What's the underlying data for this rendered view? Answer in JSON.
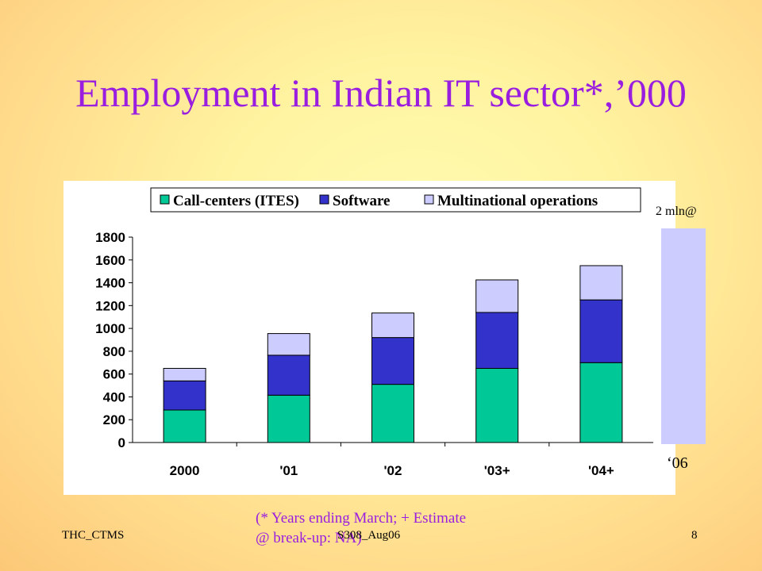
{
  "slide": {
    "title": "Employment in Indian IT sector*,’000",
    "extension_label_top": "2 mln@",
    "extension_label_bottom": "‘06",
    "extension_value_mln": 2,
    "footnote_line1": "(* Years ending March; + Estimate",
    "footnote_line2": "@ break-up: NA)",
    "footer_left": "THC_CTMS",
    "footer_center": "S308_Aug06",
    "footer_right": "8"
  },
  "chart_data": {
    "type": "bar",
    "stacked": true,
    "categories": [
      "2000",
      "'01",
      "'02",
      "'03+",
      "'04+"
    ],
    "series": [
      {
        "name": "Call-centers (ITES)",
        "color": "#00c896",
        "values": [
          285,
          415,
          510,
          650,
          700
        ]
      },
      {
        "name": "Software",
        "color": "#3333cc",
        "values": [
          255,
          350,
          410,
          490,
          550
        ]
      },
      {
        "name": "Multinational operations",
        "color": "#ccccff",
        "values": [
          110,
          190,
          215,
          285,
          300
        ]
      }
    ],
    "y_ticks": [
      "0",
      "200",
      "400",
      "600",
      "800",
      "1000",
      "1200",
      "1400",
      "1600",
      "1800"
    ],
    "ylim": [
      0,
      1800
    ],
    "legend_position": "top",
    "grid": false
  }
}
